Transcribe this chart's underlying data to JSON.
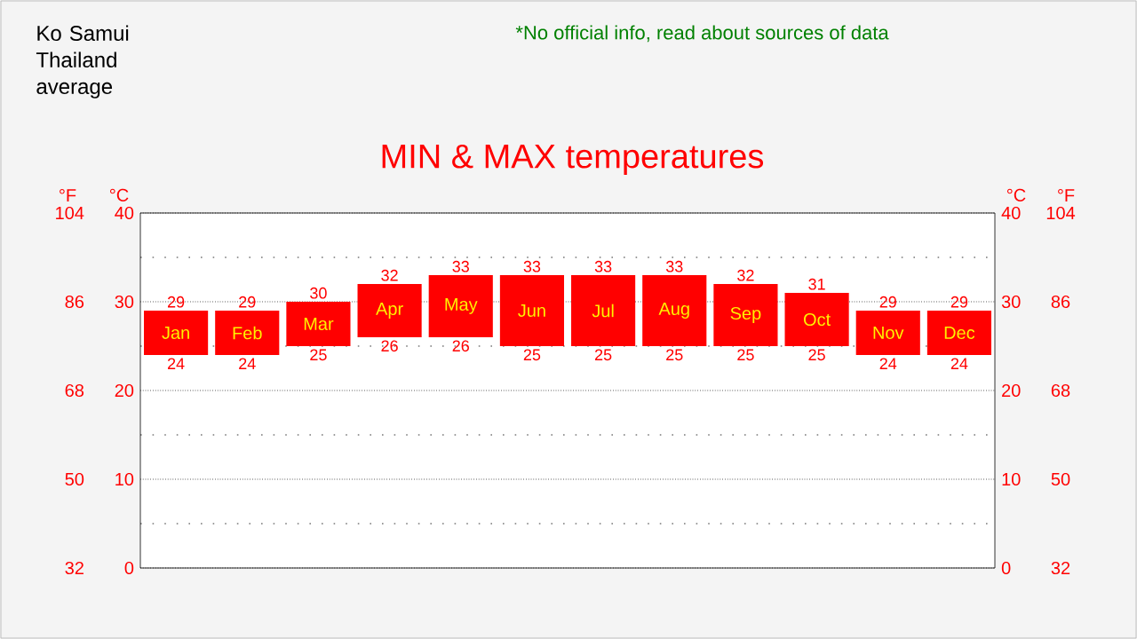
{
  "chart_data": {
    "type": "bar",
    "title": "MIN & MAX temperatures",
    "subtitle": "Ko Samui Thailand average",
    "annotations": [
      "*No official info, read about sources of data",
      {
        "text": "29",
        "x": "Jan",
        "y": 29
      },
      {
        "text": "24",
        "x": "Jan",
        "y": 24
      },
      {
        "text": "29",
        "x": "Feb",
        "y": 29
      },
      {
        "text": "24",
        "x": "Feb",
        "y": 24
      },
      {
        "text": "30",
        "x": "Mar",
        "y": 30
      },
      {
        "text": "25",
        "x": "Mar",
        "y": 25
      },
      {
        "text": "32",
        "x": "Apr",
        "y": 32
      },
      {
        "text": "26",
        "x": "Apr",
        "y": 26
      },
      {
        "text": "33",
        "x": "May",
        "y": 33
      },
      {
        "text": "26",
        "x": "May",
        "y": 26
      },
      {
        "text": "33",
        "x": "Jun",
        "y": 33
      },
      {
        "text": "25",
        "x": "Jun",
        "y": 25
      },
      {
        "text": "33",
        "x": "Jul",
        "y": 33
      },
      {
        "text": "25",
        "x": "Jul",
        "y": 25
      },
      {
        "text": "33",
        "x": "Aug",
        "y": 33
      },
      {
        "text": "25",
        "x": "Aug",
        "y": 25
      },
      {
        "text": "32",
        "x": "Sep",
        "y": 32
      },
      {
        "text": "25",
        "x": "Sep",
        "y": 25
      },
      {
        "text": "31",
        "x": "Oct",
        "y": 31
      },
      {
        "text": "25",
        "x": "Oct",
        "y": 25
      },
      {
        "text": "29",
        "x": "Nov",
        "y": 29
      },
      {
        "text": "24",
        "x": "Nov",
        "y": 24
      },
      {
        "text": "29",
        "x": "Dec",
        "y": 29
      },
      {
        "text": "24",
        "x": "Dec",
        "y": 24
      },
      "104",
      "86",
      "68",
      "50",
      "32"
    ],
    "categories": [
      "Jan",
      "Feb",
      "Mar",
      "Apr",
      "May",
      "Jun",
      "Jul",
      "Aug",
      "Sep",
      "Oct",
      "Nov",
      "Dec"
    ],
    "base": [
      24,
      24,
      25,
      26,
      26,
      25,
      25,
      25,
      25,
      25,
      24,
      24
    ],
    "values": [
      5,
      5,
      5,
      6,
      7,
      8,
      8,
      8,
      7,
      6,
      5,
      5
    ],
    "color": "#ff0000",
    "ylabel": "°C",
    "ylim": [
      0,
      40
    ],
    "yticks": [
      0,
      10,
      20,
      30,
      40
    ],
    "y2label": "°C",
    "y2lim": [
      0,
      40
    ],
    "y2ticks": [
      0,
      10,
      20,
      30,
      40
    ],
    "y3label": "°F",
    "y3lim": [
      32,
      104
    ],
    "y3ticks": [
      32,
      50,
      68,
      86,
      104
    ],
    "grid": "y"
  }
}
